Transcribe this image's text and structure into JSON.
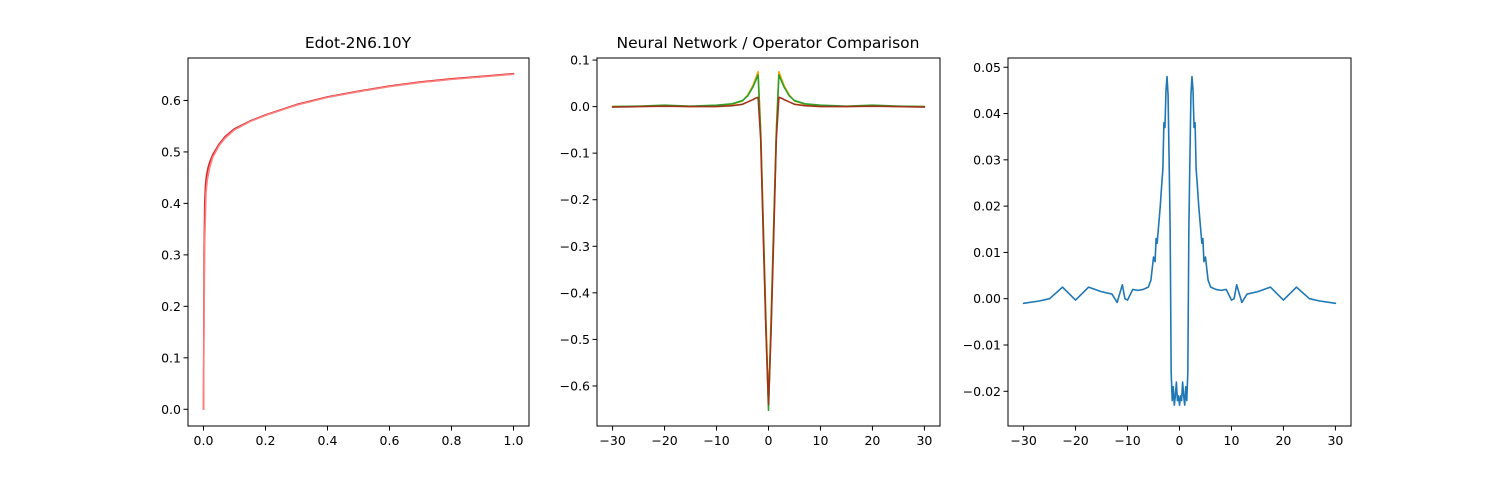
{
  "chart_data": [
    {
      "type": "line",
      "title": "Edot-2N6.10Y",
      "xlabel": "",
      "ylabel": "",
      "xlim": [
        -0.05,
        1.05
      ],
      "ylim": [
        -0.0325,
        0.6825
      ],
      "grid": false,
      "x_ticks": [
        0.0,
        0.2,
        0.4,
        0.6,
        0.8,
        1.0
      ],
      "x_tick_labels": [
        "0.0",
        "0.2",
        "0.4",
        "0.6",
        "0.8",
        "1.0"
      ],
      "y_ticks": [
        0.0,
        0.1,
        0.2,
        0.3,
        0.4,
        0.5,
        0.6
      ],
      "y_tick_labels": [
        "0.0",
        "0.1",
        "0.2",
        "0.3",
        "0.4",
        "0.5",
        "0.6"
      ],
      "series": [
        {
          "color": "#d62728",
          "x": [
            0.0,
            0.001,
            0.002,
            0.004,
            0.006,
            0.008,
            0.01,
            0.015,
            0.02,
            0.03,
            0.04,
            0.05,
            0.07,
            0.1,
            0.15,
            0.2,
            0.3,
            0.4,
            0.5,
            0.6,
            0.7,
            0.8,
            0.9,
            1.0
          ],
          "values": [
            0.0,
            0.15,
            0.3,
            0.4,
            0.43,
            0.445,
            0.455,
            0.47,
            0.48,
            0.495,
            0.505,
            0.515,
            0.53,
            0.545,
            0.56,
            0.572,
            0.592,
            0.607,
            0.618,
            0.628,
            0.636,
            0.642,
            0.647,
            0.652
          ]
        },
        {
          "color": "#ff7f7f",
          "x": [
            0.0,
            0.002,
            0.004,
            0.008,
            0.012,
            0.02,
            0.03,
            0.05,
            0.07,
            0.1,
            0.15,
            0.2,
            0.3,
            0.4,
            0.5,
            0.6,
            0.7,
            0.8,
            0.9,
            1.0
          ],
          "values": [
            0.0,
            0.2,
            0.33,
            0.42,
            0.445,
            0.47,
            0.49,
            0.512,
            0.527,
            0.543,
            0.559,
            0.571,
            0.591,
            0.606,
            0.617,
            0.627,
            0.635,
            0.641,
            0.646,
            0.651
          ]
        }
      ]
    },
    {
      "type": "line",
      "title": "Neural Network / Operator Comparison",
      "xlabel": "",
      "ylabel": "",
      "xlim": [
        -33,
        33
      ],
      "ylim": [
        -0.686,
        0.1044
      ],
      "grid": false,
      "x_ticks": [
        -30,
        -20,
        -10,
        0,
        10,
        20,
        30
      ],
      "x_tick_labels": [
        "−30",
        "−20",
        "−10",
        "0",
        "10",
        "20",
        "30"
      ],
      "y_ticks": [
        0.1,
        0.0,
        -0.1,
        -0.2,
        -0.3,
        -0.4,
        -0.5,
        -0.6
      ],
      "y_tick_labels": [
        "0.1",
        "0.0",
        "−0.1",
        "−0.2",
        "−0.3",
        "−0.4",
        "−0.5",
        "−0.6"
      ],
      "series": [
        {
          "color": "#ffa500",
          "x": [
            -30,
            -25,
            -20,
            -15,
            -10,
            -7,
            -5,
            -4,
            -3,
            -2.5,
            -2,
            -1.5,
            -1,
            -0.5,
            0,
            0.5,
            1,
            1.5,
            2,
            2.5,
            3,
            4,
            5,
            7,
            10,
            15,
            20,
            25,
            30
          ],
          "values": [
            0.0,
            0.0,
            0.002,
            0.0,
            0.002,
            0.005,
            0.012,
            0.025,
            0.045,
            0.06,
            0.075,
            -0.05,
            -0.25,
            -0.45,
            -0.64,
            -0.45,
            -0.25,
            -0.05,
            0.075,
            0.06,
            0.045,
            0.025,
            0.012,
            0.005,
            0.002,
            0.0,
            0.002,
            0.0,
            0.0
          ]
        },
        {
          "color": "#2ca02c",
          "x": [
            -30,
            -25,
            -20,
            -15,
            -10,
            -7,
            -5,
            -4,
            -3,
            -2.5,
            -2,
            -1.5,
            -1,
            -0.5,
            0,
            0.5,
            1,
            1.5,
            2,
            2.5,
            3,
            4,
            5,
            7,
            10,
            15,
            20,
            25,
            30
          ],
          "values": [
            0.0,
            0.001,
            0.003,
            0.001,
            0.003,
            0.006,
            0.013,
            0.023,
            0.042,
            0.055,
            0.068,
            -0.06,
            -0.26,
            -0.47,
            -0.652,
            -0.47,
            -0.26,
            -0.06,
            0.068,
            0.055,
            0.042,
            0.023,
            0.013,
            0.006,
            0.003,
            0.001,
            0.003,
            0.001,
            0.0
          ]
        },
        {
          "color": "#a0341b",
          "x": [
            -30,
            -25,
            -20,
            -15,
            -10,
            -7,
            -5,
            -4,
            -3,
            -2.5,
            -2,
            -1.5,
            -1,
            -0.5,
            0,
            0.5,
            1,
            1.5,
            2,
            2.5,
            3,
            4,
            5,
            7,
            10,
            15,
            20,
            25,
            30
          ],
          "values": [
            -0.001,
            0.0,
            0.001,
            0.0,
            0.0,
            0.002,
            0.005,
            0.01,
            0.015,
            0.018,
            0.02,
            -0.07,
            -0.28,
            -0.48,
            -0.64,
            -0.48,
            -0.28,
            -0.07,
            0.02,
            0.018,
            0.015,
            0.01,
            0.005,
            0.002,
            0.0,
            0.0,
            0.001,
            0.0,
            -0.001
          ]
        }
      ]
    },
    {
      "type": "line",
      "title": "",
      "xlabel": "",
      "ylabel": "",
      "xlim": [
        -33,
        33
      ],
      "ylim": [
        -0.0275,
        0.052
      ],
      "grid": false,
      "x_ticks": [
        -30,
        -20,
        -10,
        0,
        10,
        20,
        30
      ],
      "x_tick_labels": [
        "−30",
        "−20",
        "−10",
        "0",
        "10",
        "20",
        "30"
      ],
      "y_ticks": [
        0.05,
        0.04,
        0.03,
        0.02,
        0.01,
        0.0,
        -0.01,
        -0.02
      ],
      "y_tick_labels": [
        "0.05",
        "0.04",
        "0.03",
        "0.02",
        "0.01",
        "0.00",
        "−0.01",
        "−0.02"
      ],
      "series": [
        {
          "color": "#1f77b4",
          "x": [
            -30,
            -27,
            -25,
            -22.5,
            -20,
            -17.5,
            -15,
            -13,
            -12,
            -11,
            -10.5,
            -10,
            -9,
            -8,
            -7,
            -6,
            -5.5,
            -5,
            -4.7,
            -4.5,
            -4.3,
            -4,
            -3.7,
            -3.4,
            -3.2,
            -3,
            -2.8,
            -2.6,
            -2.4,
            -2.2,
            -2,
            -1.8,
            -1.6,
            -1.4,
            -1.2,
            -1,
            -0.8,
            -0.6,
            -0.4,
            -0.2,
            0,
            0.2,
            0.4,
            0.6,
            0.8,
            1,
            1.2,
            1.4,
            1.6,
            1.8,
            2,
            2.2,
            2.4,
            2.6,
            2.8,
            3,
            3.2,
            3.4,
            3.7,
            4,
            4.3,
            4.5,
            4.7,
            5,
            5.5,
            6,
            7,
            8,
            9,
            10,
            10.5,
            11,
            12,
            13,
            15,
            17.5,
            20,
            22.5,
            25,
            27,
            30
          ],
          "values": [
            -0.001,
            -0.0005,
            0.0,
            0.0025,
            -0.0003,
            0.0025,
            0.0015,
            0.001,
            -0.0008,
            0.003,
            0.0,
            -0.0003,
            0.002,
            0.0018,
            0.002,
            0.0025,
            0.004,
            0.009,
            0.008,
            0.013,
            0.012,
            0.016,
            0.02,
            0.025,
            0.028,
            0.038,
            0.037,
            0.045,
            0.048,
            0.044,
            0.03,
            0.015,
            -0.016,
            -0.022,
            -0.019,
            -0.023,
            -0.021,
            -0.018,
            -0.022,
            -0.021,
            -0.023,
            -0.021,
            -0.022,
            -0.018,
            -0.021,
            -0.023,
            -0.019,
            -0.022,
            -0.016,
            0.015,
            0.03,
            0.044,
            0.048,
            0.045,
            0.037,
            0.038,
            0.028,
            0.025,
            0.02,
            0.016,
            0.012,
            0.013,
            0.008,
            0.009,
            0.004,
            0.0025,
            0.002,
            0.0018,
            0.002,
            -0.0003,
            0.0,
            0.003,
            -0.0008,
            0.001,
            0.0015,
            0.0025,
            -0.0003,
            0.0025,
            0.0,
            -0.0005,
            -0.001
          ]
        }
      ]
    }
  ]
}
